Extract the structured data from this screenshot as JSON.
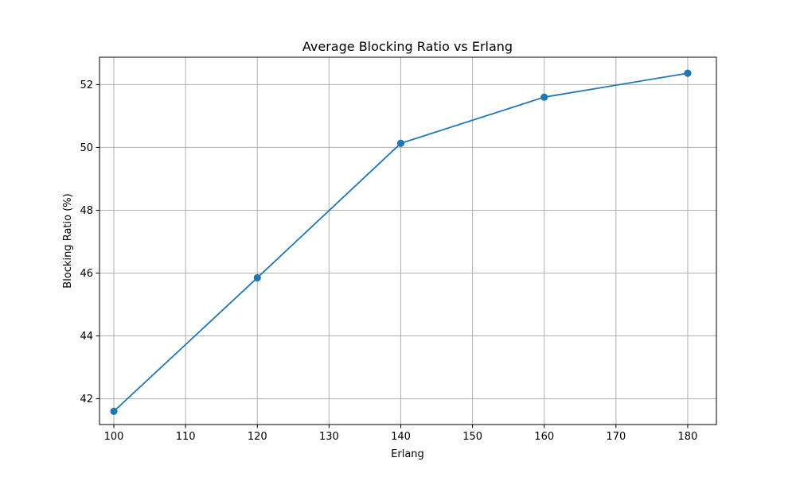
{
  "chart_data": {
    "type": "line",
    "title": "Average Blocking Ratio vs Erlang",
    "xlabel": "Erlang",
    "ylabel": "Blocking Ratio (%)",
    "xlim": [
      98,
      184
    ],
    "ylim": [
      41.18,
      52.87
    ],
    "xticks": [
      100,
      110,
      120,
      130,
      140,
      150,
      160,
      170,
      180
    ],
    "yticks": [
      42,
      44,
      46,
      48,
      50,
      52
    ],
    "grid": true,
    "legend": "none",
    "series": [
      {
        "color": "#1f77b4",
        "marker": "circle",
        "x": [
          100,
          120,
          140,
          160,
          180
        ],
        "y": [
          41.6,
          45.85,
          50.13,
          51.6,
          52.36
        ]
      }
    ]
  }
}
